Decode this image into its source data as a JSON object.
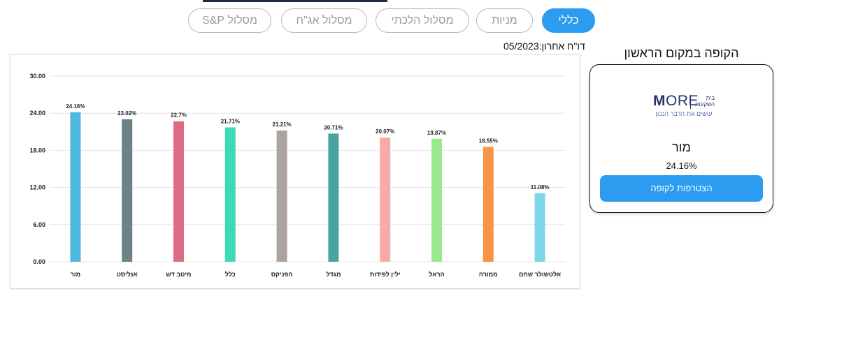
{
  "tabs": [
    {
      "label": "כללי",
      "active": true
    },
    {
      "label": "מניות",
      "active": false
    },
    {
      "label": "מסלול הלכתי",
      "active": false
    },
    {
      "label": "מסלול אג\"ח",
      "active": false
    },
    {
      "label": "מסלול S&P",
      "active": false
    }
  ],
  "report_label": "05/2023:דו\"ח אחרון",
  "top_fund": {
    "heading": "הקופה במקום הראשון",
    "logo_text_bold": "M",
    "logo_text_thin": "ORE",
    "logo_side": "בית השקעות",
    "logo_tagline": "עושים את הדבר הנכון",
    "name": "מור",
    "value": "24.16%",
    "join_label": "הצטרפות לקופה"
  },
  "colors": {
    "accent": "#2c9cf0",
    "logo": "#25356b"
  },
  "chart_data": {
    "type": "bar",
    "categories": [
      "מור",
      "אנליסט",
      "מיטב דש",
      "כלל",
      "הפניקס",
      "מגדל",
      "ילין לפידות",
      "הראל",
      "ממורה",
      "אלטשולר שחם"
    ],
    "values": [
      24.16,
      23.02,
      22.7,
      21.71,
      21.21,
      20.71,
      20.07,
      19.87,
      18.55,
      11.08
    ],
    "value_labels": [
      "24.16%",
      "23.02%",
      "22.7%",
      "21.71%",
      "21.21%",
      "20.71%",
      "20.07%",
      "19.87%",
      "18.55%",
      "11.08%"
    ],
    "bar_colors": [
      "#4fb8e0",
      "#6e8088",
      "#dd6b84",
      "#3ddab4",
      "#aca39c",
      "#4aa39f",
      "#f8aaa9",
      "#9ce88c",
      "#f99444",
      "#7fd5ea"
    ],
    "yticks": [
      "0.00",
      "6.00",
      "12.00",
      "18.00",
      "24.00",
      "30.00"
    ],
    "ylim": [
      0,
      30
    ],
    "grid": true,
    "xlabel": "",
    "ylabel": "",
    "title": ""
  }
}
